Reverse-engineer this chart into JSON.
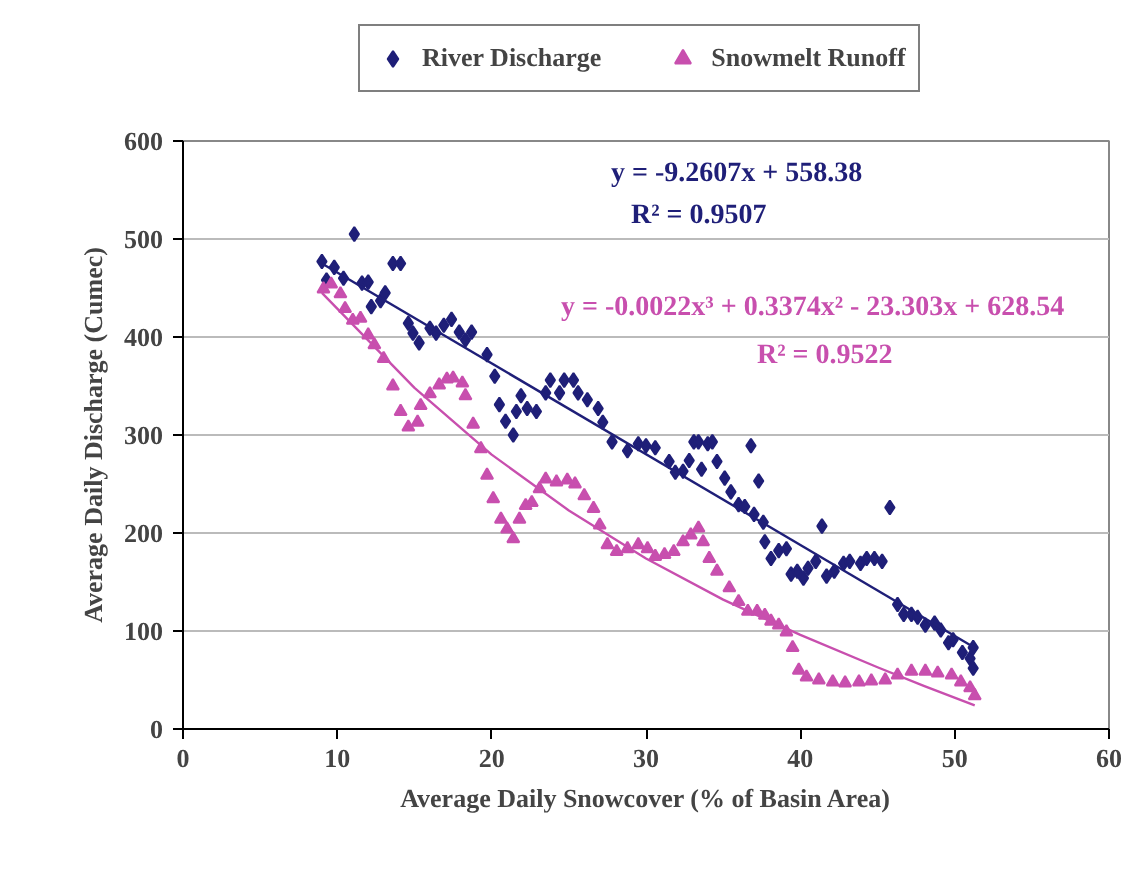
{
  "chart_data": {
    "type": "scatter",
    "xlabel": "Average Daily Snowcover (% of Basin Area)",
    "ylabel": "Average Daily Discharge (Cumec)",
    "xlim": [
      0,
      60
    ],
    "xticks": [
      0,
      10,
      20,
      30,
      40,
      50,
      60
    ],
    "ylim": [
      0,
      600
    ],
    "yticks": [
      0,
      100,
      200,
      300,
      400,
      500,
      600
    ],
    "grid": "y",
    "legend": "top",
    "annotations": [
      "y = -9.2607x + 558.38",
      "R² = 0.9507",
      "y = -0.0022x³ + 0.3374x² - 23.303x + 628.54",
      "R² = 0.9522"
    ],
    "series": [
      {
        "name": "River Discharge",
        "color": "#1f1f78",
        "marker": "diamond",
        "x": [
          9.0,
          9.3,
          9.8,
          10.4,
          11.1,
          11.6,
          12.0,
          12.2,
          12.8,
          13.1,
          13.6,
          14.1,
          14.6,
          14.9,
          15.3,
          16.0,
          16.4,
          16.9,
          17.4,
          17.9,
          18.3,
          18.7,
          19.7,
          20.2,
          20.5,
          20.9,
          21.4,
          21.6,
          21.9,
          22.3,
          22.9,
          23.5,
          23.8,
          24.4,
          24.7,
          25.3,
          25.6,
          26.2,
          26.9,
          27.2,
          27.8,
          28.8,
          29.5,
          30.0,
          30.6,
          31.5,
          31.9,
          32.4,
          32.8,
          33.1,
          33.4,
          33.6,
          34.0,
          34.3,
          34.6,
          35.1,
          35.5,
          36.0,
          36.4,
          36.8,
          37.0,
          37.3,
          37.6,
          37.7,
          38.1,
          38.6,
          39.1,
          39.4,
          39.8,
          40.2,
          40.5,
          41.0,
          41.4,
          41.7,
          42.2,
          42.8,
          43.2,
          43.9,
          44.3,
          44.8,
          45.3,
          45.8,
          46.3,
          46.7,
          47.2,
          47.6,
          48.1,
          48.7,
          49.1,
          49.6,
          49.9,
          50.5,
          51.0,
          51.2,
          51.2
        ],
        "values": [
          477,
          458,
          471,
          460,
          505,
          455,
          456,
          431,
          437,
          445,
          475,
          475,
          414,
          404,
          394,
          409,
          404,
          412,
          418,
          405,
          397,
          405,
          382,
          360,
          331,
          314,
          300,
          324,
          340,
          327,
          324,
          343,
          356,
          343,
          356,
          356,
          343,
          336,
          327,
          313,
          293,
          284,
          291,
          289,
          287,
          273,
          262,
          263,
          274,
          293,
          293,
          265,
          291,
          293,
          273,
          256,
          242,
          229,
          227,
          289,
          219,
          253,
          211,
          191,
          174,
          182,
          184,
          158,
          161,
          154,
          164,
          171,
          207,
          156,
          161,
          169,
          171,
          169,
          174,
          174,
          171,
          226,
          127,
          117,
          117,
          114,
          106,
          108,
          101,
          88,
          91,
          78,
          72,
          83,
          62
        ]
      },
      {
        "name": "Snowmelt Runoff",
        "color": "#c84fae",
        "marker": "triangle",
        "x": [
          9.1,
          9.6,
          10.2,
          10.5,
          11.0,
          11.5,
          12.0,
          12.4,
          13.0,
          13.6,
          14.1,
          14.6,
          15.2,
          15.4,
          16.0,
          16.6,
          17.1,
          17.5,
          18.1,
          18.3,
          18.8,
          19.3,
          19.7,
          20.1,
          20.6,
          21.0,
          21.4,
          21.8,
          22.2,
          22.6,
          23.1,
          23.5,
          24.2,
          24.9,
          25.4,
          26.0,
          26.6,
          27.0,
          27.5,
          28.1,
          28.8,
          29.5,
          30.1,
          30.6,
          31.2,
          31.8,
          32.4,
          32.9,
          33.4,
          33.7,
          34.1,
          34.6,
          35.4,
          36.0,
          36.6,
          37.2,
          37.7,
          38.1,
          38.6,
          39.1,
          39.5,
          39.9,
          40.4,
          41.2,
          42.1,
          42.9,
          43.8,
          44.6,
          45.5,
          46.3,
          47.2,
          48.1,
          48.9,
          49.8,
          50.4,
          51.0,
          51.3
        ],
        "values": [
          449,
          454,
          444,
          429,
          417,
          419,
          402,
          392,
          378,
          350,
          324,
          308,
          313,
          330,
          342,
          351,
          357,
          358,
          353,
          340,
          311,
          286,
          259,
          235,
          214,
          204,
          194,
          214,
          228,
          231,
          245,
          255,
          252,
          254,
          250,
          238,
          225,
          208,
          188,
          181,
          184,
          188,
          184,
          176,
          178,
          181,
          191,
          198,
          205,
          191,
          174,
          161,
          144,
          130,
          120,
          120,
          116,
          110,
          106,
          99,
          83,
          60,
          53,
          50,
          48,
          47,
          48,
          49,
          50,
          55,
          59,
          59,
          57,
          55,
          48,
          42,
          34
        ]
      },
      {
        "type": "line",
        "color": "#1f1f78",
        "marker": "none",
        "x": [
          9.0,
          51.3
        ],
        "values": [
          475,
          83
        ]
      },
      {
        "type": "line",
        "color": "#c84fae",
        "marker": "none",
        "x": [
          9,
          15,
          20,
          25,
          30,
          35,
          40,
          45,
          48,
          51.3
        ],
        "values": [
          445,
          348,
          280,
          223,
          174,
          132,
          96,
          63,
          44,
          24
        ]
      }
    ]
  }
}
